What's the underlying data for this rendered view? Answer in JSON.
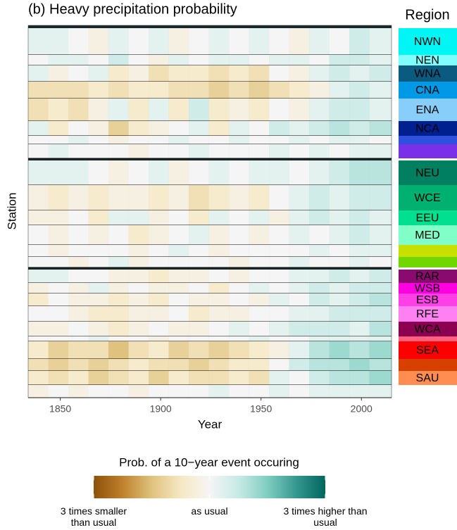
{
  "chart_data": {
    "type": "heatmap",
    "title": "(b) Heavy precipitation probability",
    "x_label": "Year",
    "y_label": "Station",
    "xlim": [
      1834,
      2015
    ],
    "xticks": [
      1850,
      1900,
      1950,
      2000
    ],
    "x_bins": [
      1834,
      1844,
      1854,
      1864,
      1874,
      1884,
      1894,
      1904,
      1914,
      1924,
      1934,
      1944,
      1954,
      1964,
      1974,
      1984,
      1994,
      2004,
      2015
    ],
    "legend_title": "Region",
    "rows": [
      {
        "region": "NWN",
        "color": "#00F5F5",
        "values": [
          0.1,
          0.1,
          0,
          -0.1,
          0.1,
          0,
          0.1,
          -0.1,
          0,
          0.1,
          0,
          0.1,
          0,
          -0.1,
          0.1,
          0,
          0.2,
          0.1
        ]
      },
      {
        "region": "NEN",
        "color": "#80FFFF",
        "values": [
          0,
          0.1,
          0.1,
          0,
          0.2,
          0,
          -0.1,
          0.1,
          0,
          0.1,
          0.1,
          0,
          0.1,
          0.1,
          0,
          0.2,
          0.2,
          0.1
        ]
      },
      {
        "region": "WNA",
        "color": "#0B5A80",
        "values": [
          0.1,
          -0.1,
          0,
          0.1,
          -0.2,
          -0.1,
          -0.3,
          -0.2,
          -0.2,
          -0.3,
          -0.2,
          -0.3,
          0,
          -0.1,
          0.1,
          0.2,
          0.1,
          0.2
        ]
      },
      {
        "region": "CNA",
        "color": "#0099E6",
        "values": [
          -0.3,
          -0.3,
          -0.3,
          -0.2,
          -0.3,
          -0.2,
          -0.2,
          -0.3,
          -0.3,
          -0.4,
          -0.3,
          -0.4,
          -0.3,
          -0.2,
          -0.1,
          0.1,
          0.2,
          0.1
        ]
      },
      {
        "region": "ENA",
        "color": "#87CEFA",
        "values": [
          -0.3,
          -0.2,
          -0.3,
          -0.1,
          0.1,
          -0.2,
          0.1,
          -0.2,
          0.2,
          -0.2,
          -0.1,
          -0.2,
          0,
          -0.1,
          0.1,
          0.2,
          0.2,
          0.1
        ]
      },
      {
        "region": "NCA",
        "color": "#00208F",
        "values": [
          0.1,
          -0.2,
          0,
          -0.1,
          -0.4,
          -0.2,
          -0.1,
          0,
          0.1,
          -0.2,
          0.1,
          0,
          0.2,
          0.1,
          0.2,
          0.3,
          0.2,
          0.3
        ]
      },
      {
        "region": null,
        "color": "#3050E0",
        "values": [
          0,
          0,
          0.1,
          0,
          -0.1,
          0,
          0,
          0.1,
          0,
          0,
          0.1,
          0,
          0,
          0.1,
          0,
          0.1,
          0.1,
          0
        ]
      },
      {
        "region": null,
        "color": "#7A30E8",
        "values": [
          0,
          0.1,
          0,
          0,
          0,
          -0.1,
          0,
          0,
          0.1,
          0,
          0,
          0,
          0.1,
          0,
          0.1,
          0,
          0.1,
          0.1
        ]
      },
      {
        "region": "NEU",
        "color": "#008060",
        "values": [
          0.1,
          0.1,
          0.1,
          0,
          -0.1,
          0,
          0.1,
          -0.1,
          0,
          0.1,
          0,
          0.1,
          0.1,
          0,
          0.1,
          0.2,
          0.3,
          0.3
        ]
      },
      {
        "region": "WCE",
        "color": "#00B070",
        "values": [
          -0.1,
          -0.2,
          -0.1,
          -0.2,
          -0.1,
          -0.1,
          -0.2,
          -0.1,
          -0.3,
          -0.2,
          -0.1,
          -0.2,
          0,
          0.1,
          0.2,
          0.1,
          0.2,
          0.2
        ]
      },
      {
        "region": "EEU",
        "color": "#00E090",
        "values": [
          -0.1,
          -0.1,
          0,
          -0.2,
          0.1,
          0.1,
          -0.1,
          0,
          -0.2,
          0.1,
          0,
          0.1,
          -0.1,
          0.1,
          0.2,
          0.1,
          0.2,
          0.1
        ]
      },
      {
        "region": "MED",
        "color": "#80FFC8",
        "values": [
          0,
          -0.1,
          0,
          -0.1,
          0,
          -0.2,
          -0.1,
          0,
          0.1,
          -0.1,
          0,
          -0.1,
          0,
          0.1,
          0,
          0.1,
          0.2,
          0.1
        ]
      },
      {
        "region": null,
        "color": "#C8E000",
        "values": [
          0,
          -0.1,
          0,
          0,
          0,
          -0.1,
          0,
          0.1,
          0,
          -0.1,
          0,
          0,
          0,
          0,
          0.1,
          0,
          0.1,
          0.1
        ]
      },
      {
        "region": null,
        "color": "#70D800",
        "values": [
          0,
          0,
          -0.1,
          0,
          0.1,
          -0.1,
          0,
          0,
          0,
          0,
          -0.1,
          0,
          0,
          0.1,
          0,
          0,
          0.1,
          0
        ]
      },
      {
        "region": "RAR",
        "color": "#8B0A70",
        "values": [
          0.1,
          0.1,
          0,
          0,
          -0.1,
          -0.1,
          -0.2,
          -0.1,
          -0.1,
          0,
          -0.1,
          0,
          0,
          0.1,
          0.1,
          0.2,
          0.1,
          0.2
        ]
      },
      {
        "region": "WSB",
        "color": "#FF00E0",
        "values": [
          -0.1,
          0,
          -0.1,
          0.1,
          -0.1,
          0,
          -0.1,
          -0.1,
          0,
          -0.2,
          0,
          0.1,
          0,
          0.1,
          0.2,
          0.1,
          0.2,
          0.2
        ]
      },
      {
        "region": "ESB",
        "color": "#FF40E6",
        "values": [
          -0.2,
          0,
          -0.1,
          -0.1,
          -0.2,
          -0.1,
          -0.2,
          0,
          -0.1,
          -0.1,
          0,
          -0.1,
          0.1,
          0,
          0.2,
          0.1,
          0.2,
          0.3
        ]
      },
      {
        "region": "RFE",
        "color": "#FF80F0",
        "values": [
          0,
          0,
          -0.1,
          -0.2,
          -0.2,
          -0.1,
          -0.1,
          0,
          -0.2,
          -0.1,
          -0.1,
          0,
          0,
          0.1,
          0.1,
          0.2,
          0.2,
          0.2
        ]
      },
      {
        "region": "WCA",
        "color": "#8B0050",
        "values": [
          -0.1,
          -0.1,
          0,
          -0.1,
          -0.2,
          -0.1,
          0,
          -0.1,
          -0.1,
          0,
          0.1,
          0,
          0.1,
          0.2,
          0.2,
          0.2,
          0.1,
          0.3
        ]
      },
      {
        "region": null,
        "color": "#FF6080",
        "values": [
          0,
          0,
          0,
          0.1,
          0,
          0,
          -0.1,
          0,
          0,
          0,
          0,
          0.1,
          0,
          0,
          0.1,
          0.1,
          0.1,
          0.1
        ]
      },
      {
        "region": "SEA",
        "color": "#FF0000",
        "values": [
          -0.2,
          -0.4,
          -0.3,
          -0.3,
          -0.5,
          -0.3,
          -0.2,
          -0.4,
          -0.3,
          -0.4,
          -0.3,
          -0.2,
          -0.1,
          0.1,
          0.3,
          0.4,
          0.3,
          0.4
        ]
      },
      {
        "region": null,
        "color": "#D84000",
        "values": [
          -0.3,
          -0.4,
          -0.3,
          -0.4,
          -0.3,
          -0.2,
          -0.3,
          -0.3,
          -0.4,
          -0.3,
          -0.2,
          -0.2,
          0,
          0.2,
          0.3,
          0.3,
          0.4,
          0.3
        ]
      },
      {
        "region": "SAU",
        "color": "#FF8C50",
        "values": [
          -0.2,
          -0.3,
          -0.2,
          -0.4,
          -0.3,
          -0.2,
          -0.4,
          -0.2,
          -0.3,
          -0.3,
          -0.2,
          -0.3,
          0.1,
          0,
          0.2,
          0.3,
          0.3,
          0.4
        ]
      },
      {
        "region": null,
        "color": null,
        "values": [
          -0.1,
          0,
          -0.1,
          0,
          0,
          -0.1,
          0,
          0,
          0,
          0.1,
          0,
          0,
          0.1,
          0,
          0.1,
          0.1,
          0.1,
          0.1
        ]
      }
    ],
    "colorbar": {
      "title": "Prob. of a 10−year event occuring",
      "clim": [
        -1,
        1
      ],
      "colors": [
        "#8C510A",
        "#BF812D",
        "#DFC27D",
        "#F6E8C3",
        "#F5F5F5",
        "#C7EAE5",
        "#80CDC1",
        "#35978F",
        "#01665E"
      ],
      "ticks": [
        {
          "value": -1,
          "label": "3 times smaller than usual"
        },
        {
          "value": 0,
          "label": "as usual"
        },
        {
          "value": 1,
          "label": "3 times higher than usual"
        }
      ]
    }
  }
}
